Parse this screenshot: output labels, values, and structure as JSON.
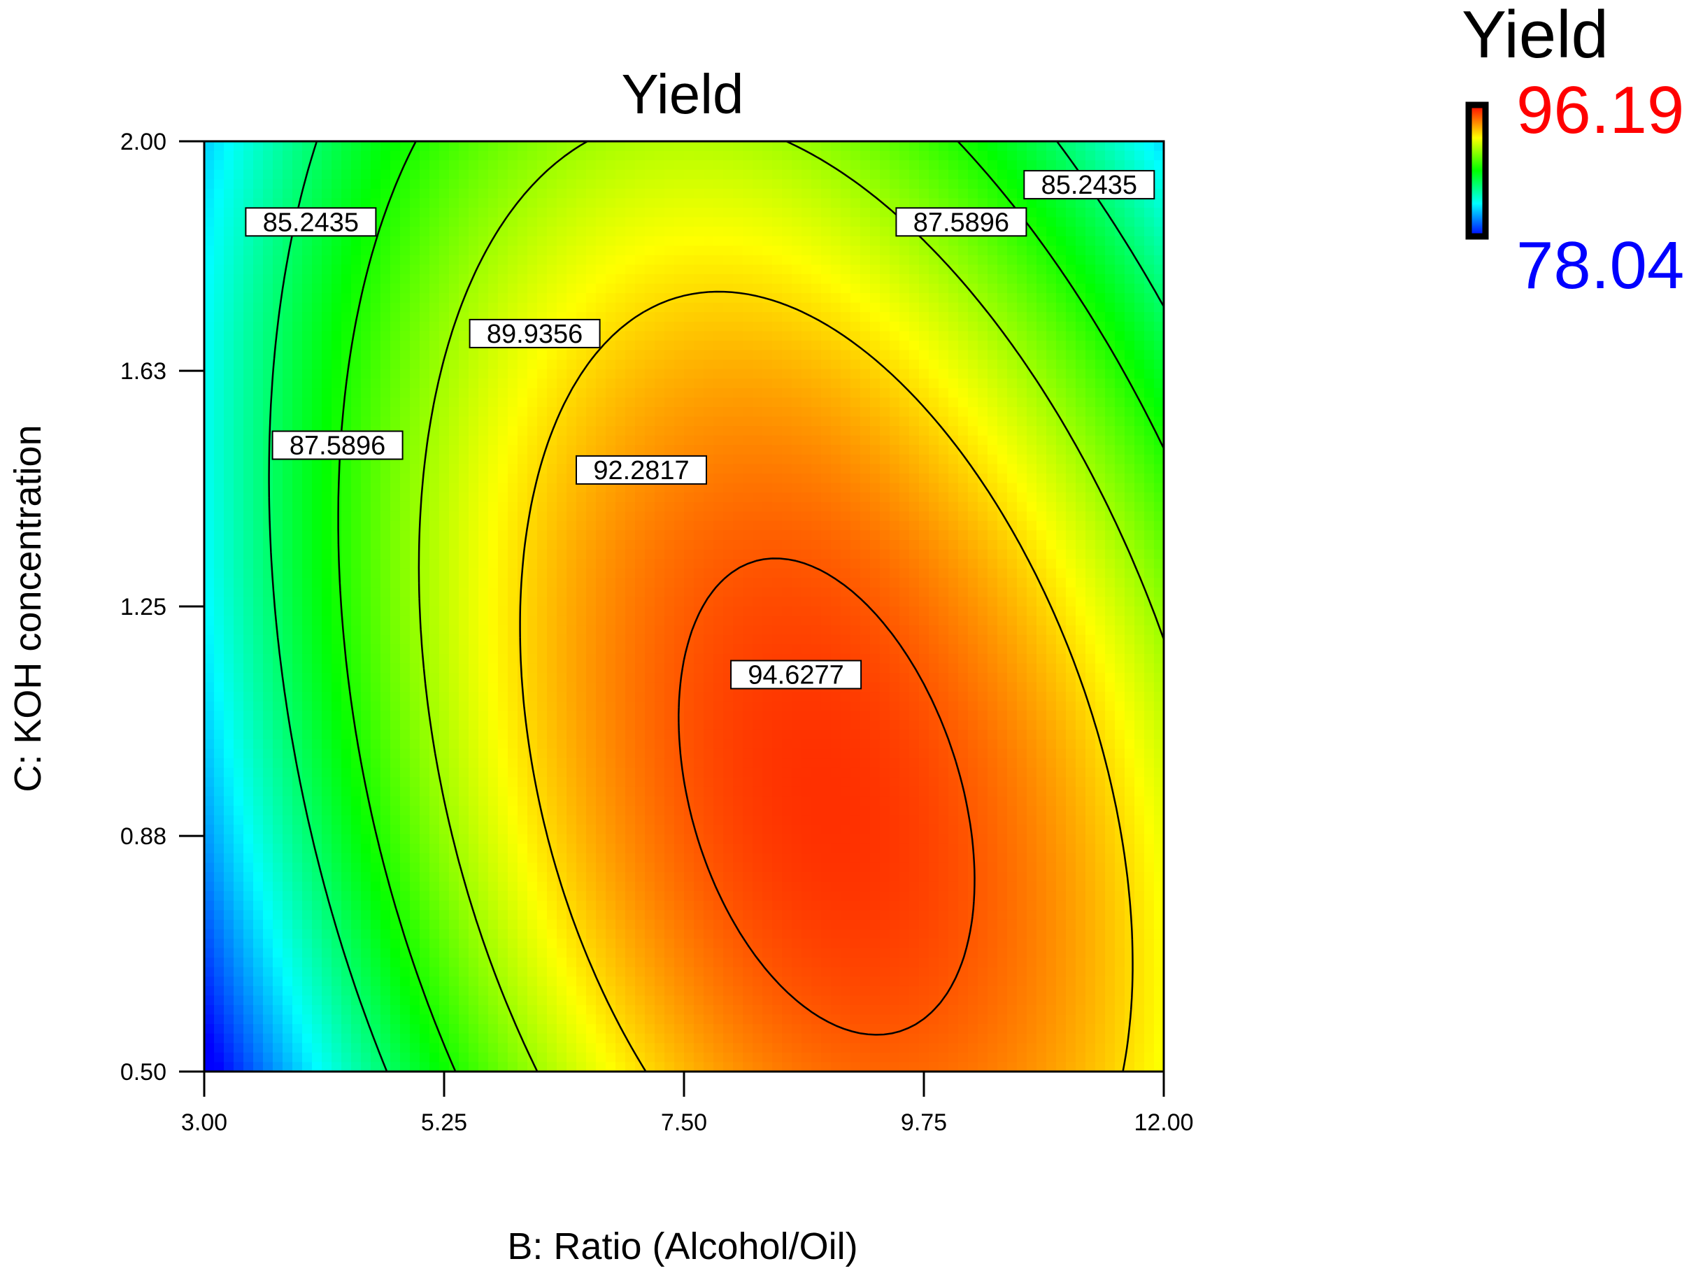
{
  "chart_data": {
    "type": "heatmap",
    "subtype": "contour",
    "title": "Yield",
    "xlabel": "B: Ratio (Alcohol/Oil)",
    "ylabel": "C: KOH concentration",
    "xlim": [
      3.0,
      12.0
    ],
    "ylim": [
      0.5,
      2.0
    ],
    "x_ticks": [
      "3.00",
      "5.25",
      "7.50",
      "9.75",
      "12.00"
    ],
    "y_ticks": [
      "0.50",
      "0.88",
      "1.25",
      "1.63",
      "2.00"
    ],
    "grid": false,
    "colorbar": {
      "title": "Yield",
      "max_label": "96.19",
      "min_label": "78.04",
      "max": 96.19,
      "min": 78.04,
      "max_color": "#ff0000",
      "min_color": "#0000ff"
    },
    "contour_levels": [
      85.2435,
      87.5896,
      89.9356,
      92.2817,
      94.6277
    ],
    "contour_labels": [
      {
        "text": "85.2435",
        "x": 4.0,
        "y": 1.87
      },
      {
        "text": "85.2435",
        "x": 11.3,
        "y": 1.93
      },
      {
        "text": "87.5896",
        "x": 4.25,
        "y": 1.51
      },
      {
        "text": "87.5896",
        "x": 10.1,
        "y": 1.87
      },
      {
        "text": "89.9356",
        "x": 6.1,
        "y": 1.69
      },
      {
        "text": "92.2817",
        "x": 7.1,
        "y": 1.47
      },
      {
        "text": "94.6277",
        "x": 8.55,
        "y": 1.14
      }
    ]
  }
}
